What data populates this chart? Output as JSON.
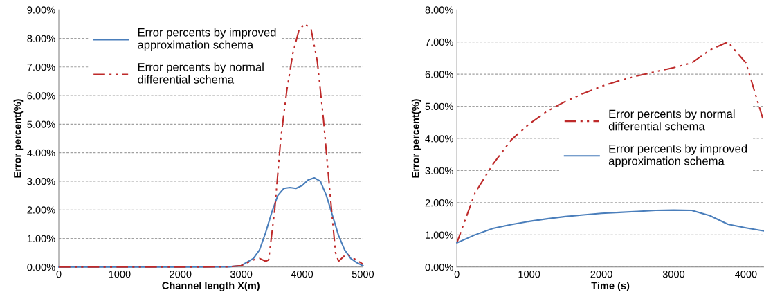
{
  "chart_data": [
    {
      "type": "line",
      "xlabel": "Channel length X(m)",
      "ylabel": "Error percent(%)",
      "xlim": [
        0,
        5000
      ],
      "xticks": [
        0,
        1000,
        2000,
        3000,
        4000,
        5000
      ],
      "ylim": [
        0,
        9
      ],
      "yticks": [
        {
          "value": 0,
          "label": "0.00%"
        },
        {
          "value": 1,
          "label": "1.00%"
        },
        {
          "value": 2,
          "label": "2.00%"
        },
        {
          "value": 3,
          "label": "3.00%"
        },
        {
          "value": 4,
          "label": "4.00%"
        },
        {
          "value": 5,
          "label": "5.00%"
        },
        {
          "value": 6,
          "label": "6.00%"
        },
        {
          "value": 7,
          "label": "7.00%"
        },
        {
          "value": 8,
          "label": "8.00%"
        },
        {
          "value": 9,
          "label": "9.00%"
        }
      ],
      "grid": "y",
      "legend": "upper left",
      "marker": "none",
      "series": [
        {
          "name": "Error percents by improved\napproximation schema",
          "color": "#4a7ebb",
          "line_style": "solid",
          "x": [
            0,
            1000,
            2000,
            2800,
            3000,
            3200,
            3300,
            3400,
            3500,
            3600,
            3700,
            3800,
            3900,
            4000,
            4100,
            4200,
            4300,
            4400,
            4500,
            4600,
            4700,
            4800,
            4900,
            5000
          ],
          "values": [
            0,
            0,
            0,
            0.01,
            0.05,
            0.3,
            0.6,
            1.2,
            1.9,
            2.5,
            2.75,
            2.78,
            2.75,
            2.85,
            3.05,
            3.12,
            3.0,
            2.5,
            1.8,
            1.1,
            0.6,
            0.3,
            0.15,
            0.05
          ]
        },
        {
          "name": "Error percents by normal\ndifferential schema",
          "color": "#be2a2a",
          "line_style": "dashdotdot",
          "x": [
            0,
            1000,
            2000,
            2800,
            3000,
            3200,
            3300,
            3400,
            3450,
            3550,
            3650,
            3750,
            3850,
            3950,
            4050,
            4150,
            4250,
            4350,
            4450,
            4550,
            4600,
            4700,
            4750,
            4850,
            5000
          ],
          "values": [
            0,
            0,
            0,
            0.01,
            0.05,
            0.25,
            0.3,
            0.2,
            0.25,
            2.0,
            4.5,
            6.2,
            7.5,
            8.3,
            8.52,
            8.3,
            7.2,
            5.2,
            2.8,
            0.5,
            0.2,
            0.4,
            0.45,
            0.3,
            0.1
          ]
        }
      ]
    },
    {
      "type": "line",
      "xlabel": "Time (s)",
      "ylabel": "Error percent(%)",
      "xlim": [
        0,
        4250
      ],
      "xticks": [
        0,
        1000,
        2000,
        3000,
        4000
      ],
      "ylim": [
        0,
        8
      ],
      "yticks": [
        {
          "value": 0,
          "label": "0.00%"
        },
        {
          "value": 1,
          "label": "1.00%"
        },
        {
          "value": 2,
          "label": "2.00%"
        },
        {
          "value": 3,
          "label": "3.00%"
        },
        {
          "value": 4,
          "label": "4.00%"
        },
        {
          "value": 5,
          "label": "5.00%"
        },
        {
          "value": 6,
          "label": "6.00%"
        },
        {
          "value": 7,
          "label": "7.00%"
        },
        {
          "value": 8,
          "label": "8.00%"
        }
      ],
      "grid": "y",
      "legend": "center right",
      "marker": "none",
      "series": [
        {
          "name": "Error percents by normal\ndifferential schema",
          "color": "#be2a2a",
          "line_style": "dashdotdot",
          "x": [
            0,
            250,
            500,
            750,
            1000,
            1250,
            1500,
            1750,
            2000,
            2250,
            2500,
            2750,
            3000,
            3250,
            3500,
            3750,
            4000,
            4250
          ],
          "values": [
            0.75,
            2.3,
            3.2,
            3.95,
            4.45,
            4.85,
            5.15,
            5.4,
            5.62,
            5.8,
            5.95,
            6.08,
            6.2,
            6.35,
            6.75,
            7.0,
            6.35,
            4.5
          ]
        },
        {
          "name": "Error percents by improved\napproximation schema",
          "color": "#4a7ebb",
          "line_style": "solid",
          "x": [
            0,
            250,
            500,
            750,
            1000,
            1250,
            1500,
            1750,
            2000,
            2250,
            2500,
            2750,
            3000,
            3250,
            3500,
            3750,
            4000,
            4250
          ],
          "values": [
            0.75,
            1.0,
            1.2,
            1.32,
            1.42,
            1.5,
            1.57,
            1.62,
            1.67,
            1.7,
            1.73,
            1.76,
            1.77,
            1.76,
            1.6,
            1.33,
            1.22,
            1.12
          ]
        }
      ]
    }
  ]
}
